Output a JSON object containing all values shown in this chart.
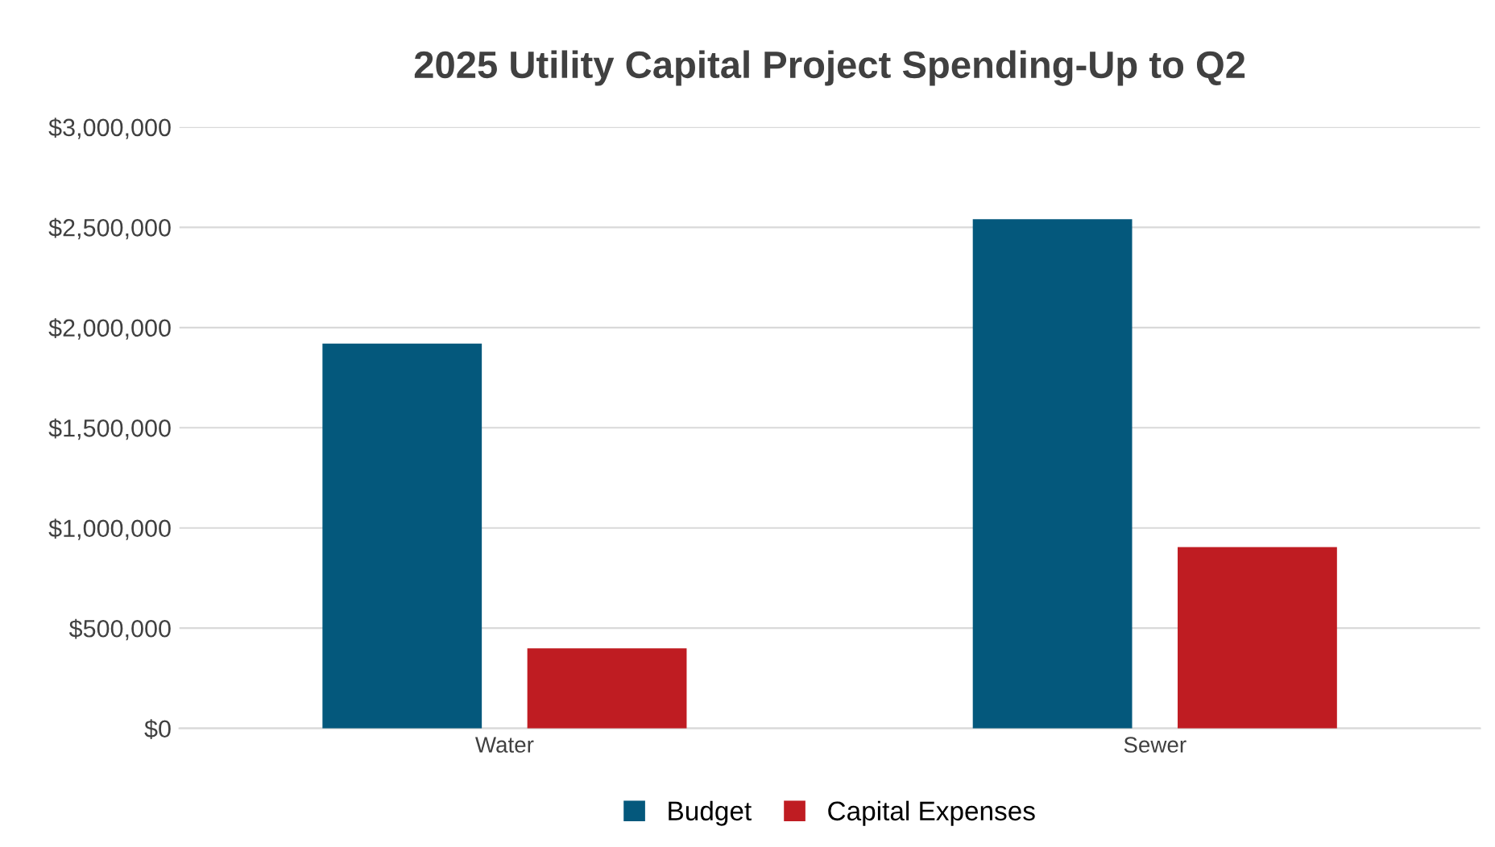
{
  "chart_data": {
    "type": "bar",
    "title": "2025 Utility Capital Project Spending-Up to Q2",
    "categories": [
      "Water",
      "Sewer"
    ],
    "series": [
      {
        "name": "Budget",
        "color": "#04587c",
        "values": [
          1920000,
          2540000
        ]
      },
      {
        "name": "Capital Expenses",
        "color": "#bf1c22",
        "values": [
          400000,
          905000
        ]
      }
    ],
    "ylim": [
      0,
      3000000
    ],
    "yticks": [
      {
        "value": 0,
        "label": "$0"
      },
      {
        "value": 500000,
        "label": "$500,000"
      },
      {
        "value": 1000000,
        "label": "$1,000,000"
      },
      {
        "value": 1500000,
        "label": "$1,500,000"
      },
      {
        "value": 2000000,
        "label": "$2,000,000"
      },
      {
        "value": 2500000,
        "label": "$2,500,000"
      },
      {
        "value": 3000000,
        "label": "$3,000,000"
      }
    ],
    "grid": "y",
    "legend": "bottom"
  }
}
